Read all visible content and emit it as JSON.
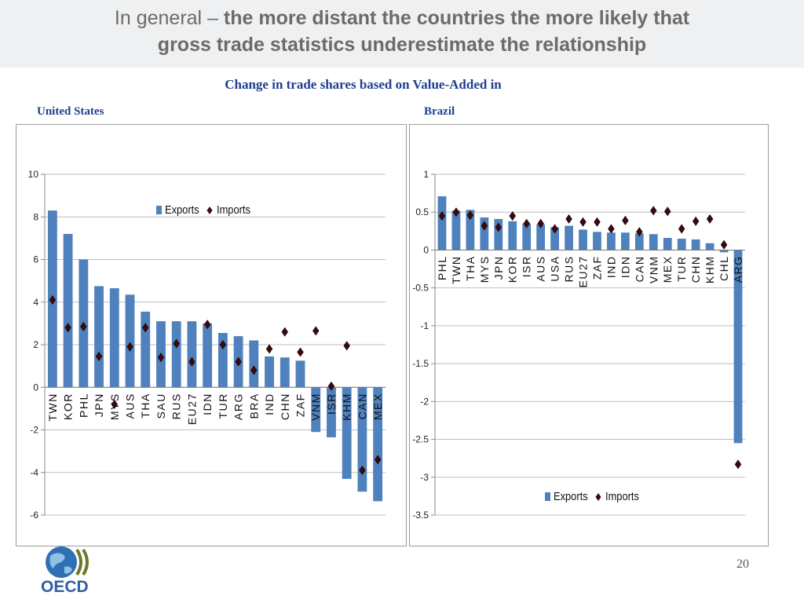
{
  "slide": {
    "title_regular": "In general – ",
    "title_bold_line1": "the more distant the countries the more likely that",
    "title_line2": "gross trade statistics underestimate the relationship",
    "subtitle": "Change in trade shares based on Value-Added in",
    "page_number": "20",
    "logo_text": "OECD"
  },
  "colors": {
    "bar": "#4f81bd",
    "marker": "#3c0a0a",
    "title_text": "#6b6b6b",
    "label_text": "#1f3f8f",
    "header_band": "#eef0f2"
  },
  "chart_data": [
    {
      "type": "bar",
      "panel_label": "United States",
      "categories": [
        "TWN",
        "KOR",
        "PHL",
        "JPN",
        "MYS",
        "AUS",
        "THA",
        "SAU",
        "RUS",
        "EU27",
        "IDN",
        "TUR",
        "ARG",
        "BRA",
        "IND",
        "CHN",
        "ZAF",
        "VNM",
        "ISR",
        "KHM",
        "CAN",
        "MEX"
      ],
      "series": [
        {
          "name": "Exports",
          "kind": "bar",
          "values": [
            8.3,
            7.2,
            6.0,
            4.75,
            4.65,
            4.35,
            3.55,
            3.1,
            3.1,
            3.1,
            3.0,
            2.55,
            2.4,
            2.2,
            1.45,
            1.4,
            1.25,
            -2.1,
            -2.35,
            -4.3,
            -4.9,
            -5.35
          ]
        },
        {
          "name": "Imports",
          "kind": "marker",
          "values": [
            4.1,
            2.8,
            2.85,
            1.45,
            -0.8,
            1.9,
            2.8,
            1.4,
            2.05,
            1.2,
            2.95,
            2.0,
            1.2,
            0.8,
            1.8,
            2.6,
            1.65,
            2.65,
            0.05,
            1.95,
            -3.9,
            -3.4
          ]
        }
      ],
      "ylim": [
        -6,
        10
      ],
      "yticks": [
        "10",
        "8",
        "6",
        "4",
        "2",
        "0",
        "-2",
        "-4",
        "-6"
      ],
      "legend": "top-center"
    },
    {
      "type": "bar",
      "panel_label": "Brazil",
      "categories": [
        "PHL",
        "TWN",
        "THA",
        "MYS",
        "JPN",
        "KOR",
        "ISR",
        "AUS",
        "USA",
        "RUS",
        "EU27",
        "ZAF",
        "IND",
        "IDN",
        "CAN",
        "VNM",
        "MEX",
        "TUR",
        "CHN",
        "KHM",
        "CHL",
        "ARG"
      ],
      "series": [
        {
          "name": "Exports",
          "kind": "bar",
          "values": [
            0.71,
            0.52,
            0.53,
            0.43,
            0.41,
            0.38,
            0.35,
            0.34,
            0.3,
            0.32,
            0.27,
            0.24,
            0.23,
            0.23,
            0.22,
            0.21,
            0.16,
            0.15,
            0.14,
            0.09,
            -0.03,
            -2.55
          ]
        },
        {
          "name": "Imports",
          "kind": "marker",
          "values": [
            0.45,
            0.5,
            0.46,
            0.32,
            0.3,
            0.45,
            0.35,
            0.35,
            0.28,
            0.41,
            0.37,
            0.37,
            0.28,
            0.39,
            0.24,
            0.52,
            0.51,
            0.28,
            0.38,
            0.41,
            0.07,
            -2.83
          ]
        }
      ],
      "ylim": [
        -3.5,
        1
      ],
      "yticks": [
        "1",
        "0.5",
        "0",
        "-0.5",
        "-1",
        "-1.5",
        "-2",
        "-2.5",
        "-3",
        "-3.5"
      ],
      "legend": "bottom-right"
    }
  ]
}
